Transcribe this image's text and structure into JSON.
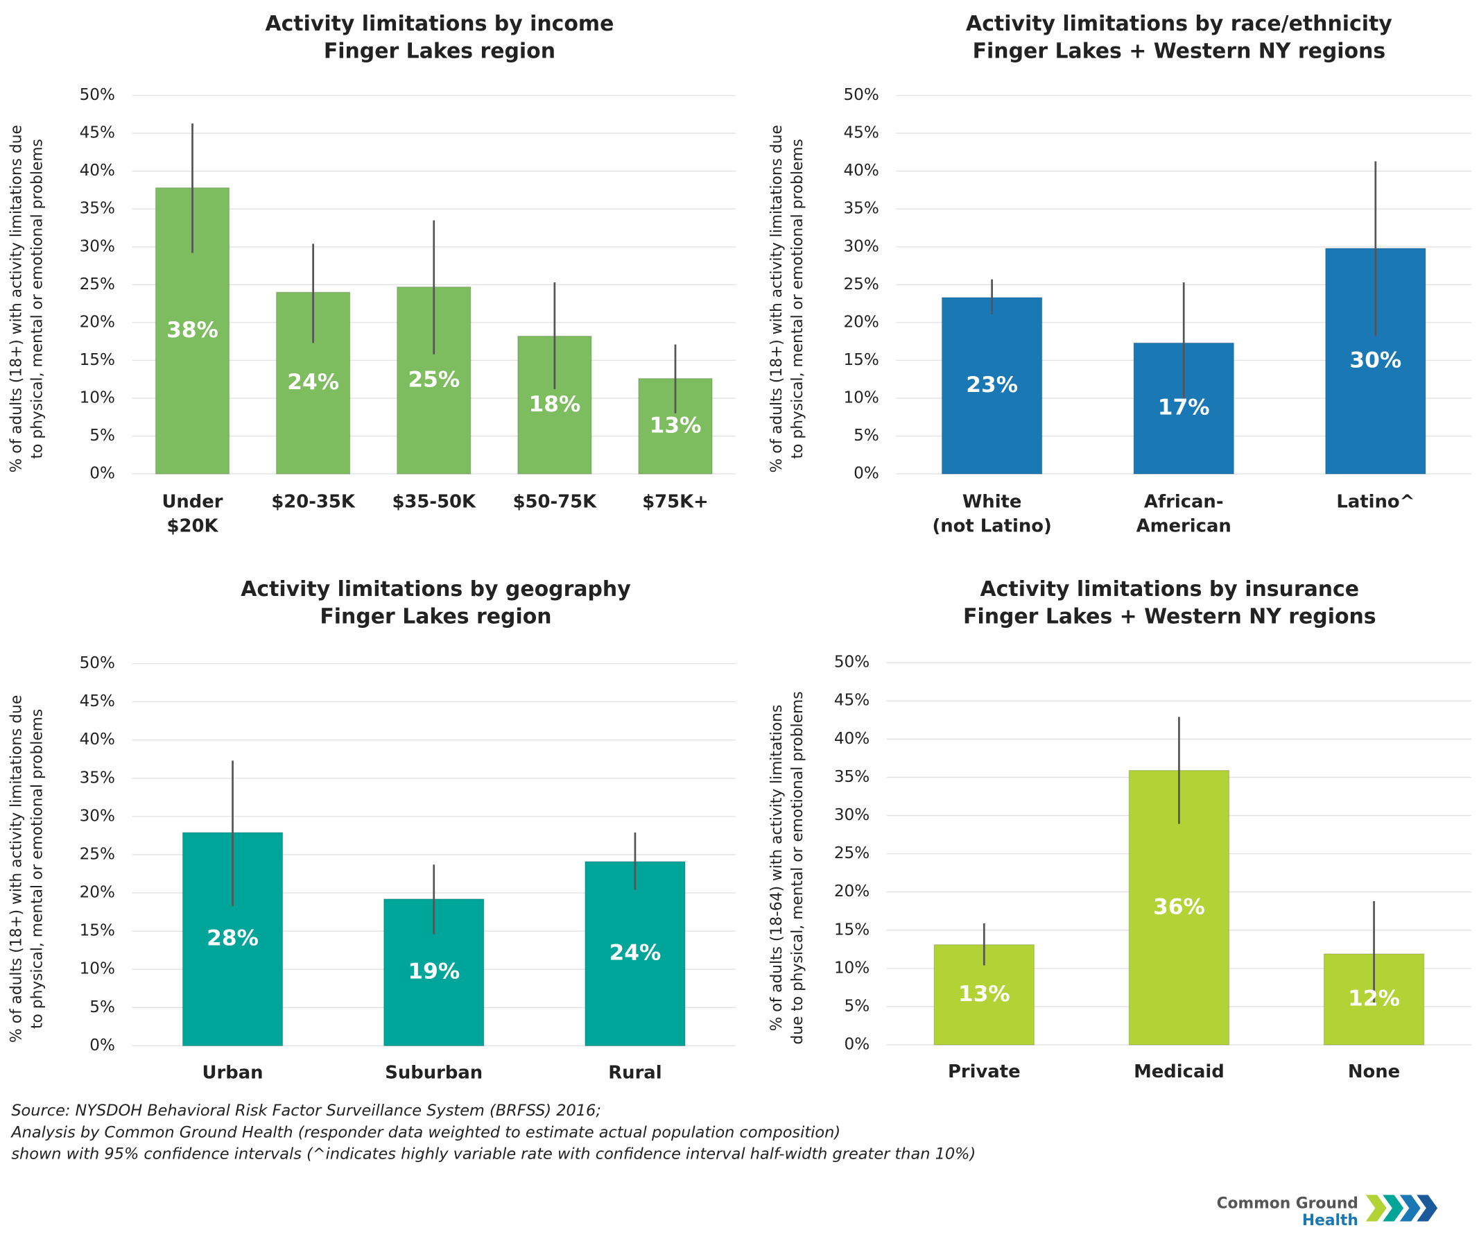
{
  "chart_data": [
    {
      "type": "bar",
      "title": "Activity limitations by income",
      "subtitle": "Finger Lakes region",
      "ylabel": [
        "% of adults (18+) with activity limitations due",
        "to physical, mental or emotional problems"
      ],
      "categories": [
        [
          "Under",
          "$20K"
        ],
        [
          "$20-35K"
        ],
        [
          "$35-50K"
        ],
        [
          "$50-75K"
        ],
        [
          "$75K+"
        ]
      ],
      "values": [
        37.8,
        24,
        24.7,
        18.2,
        12.6
      ],
      "value_labels": [
        "38%",
        "24%",
        "25%",
        "18%",
        "13%"
      ],
      "lower": [
        29.2,
        17.3,
        15.8,
        11.2,
        8
      ],
      "upper": [
        46.3,
        30.4,
        33.5,
        25.3,
        17.1
      ],
      "color": "#7dbd5f",
      "ylim": [
        0,
        50
      ],
      "grid": true,
      "yticks": [
        {
          "value": 0,
          "label": "0%"
        },
        {
          "value": 5,
          "label": "5%"
        },
        {
          "value": 10,
          "label": "10%"
        },
        {
          "value": 15,
          "label": "15%"
        },
        {
          "value": 20,
          "label": "20%"
        },
        {
          "value": 25,
          "label": "25%"
        },
        {
          "value": 30,
          "label": "30%"
        },
        {
          "value": 35,
          "label": "35%"
        },
        {
          "value": 40,
          "label": "40%"
        },
        {
          "value": 45,
          "label": "45%"
        },
        {
          "value": 50,
          "label": "50%"
        }
      ]
    },
    {
      "type": "bar",
      "title": "Activity limitations by race/ethnicity",
      "subtitle": "Finger Lakes + Western NY regions",
      "ylabel": [
        "% of adults (18+) with activity limitations due",
        "to physical, mental or emotional problems"
      ],
      "categories": [
        [
          "White",
          "(not Latino)"
        ],
        [
          "African-",
          "American"
        ],
        [
          "Latino^"
        ]
      ],
      "values": [
        23.3,
        17.3,
        29.8
      ],
      "value_labels": [
        "23%",
        "17%",
        "30%"
      ],
      "lower": [
        21.1,
        9.6,
        18.2
      ],
      "upper": [
        25.7,
        25.3,
        41.3
      ],
      "color": "#1a78b5",
      "ylim": [
        0,
        50
      ],
      "grid": true,
      "yticks": [
        {
          "value": 0,
          "label": "0%"
        },
        {
          "value": 5,
          "label": "5%"
        },
        {
          "value": 10,
          "label": "10%"
        },
        {
          "value": 15,
          "label": "15%"
        },
        {
          "value": 20,
          "label": "20%"
        },
        {
          "value": 25,
          "label": "25%"
        },
        {
          "value": 30,
          "label": "30%"
        },
        {
          "value": 35,
          "label": "35%"
        },
        {
          "value": 40,
          "label": "40%"
        },
        {
          "value": 45,
          "label": "45%"
        },
        {
          "value": 50,
          "label": "50%"
        }
      ]
    },
    {
      "type": "bar",
      "title": "Activity limitations by geography",
      "subtitle": "Finger Lakes region",
      "ylabel": [
        "% of adults (18+) with activity limitations due",
        "to physical, mental or emotional problems"
      ],
      "categories": [
        [
          "Urban"
        ],
        [
          "Suburban"
        ],
        [
          "Rural"
        ]
      ],
      "values": [
        27.9,
        19.2,
        24.1
      ],
      "value_labels": [
        "28%",
        "19%",
        "24%"
      ],
      "lower": [
        18.3,
        14.6,
        20.4
      ],
      "upper": [
        37.3,
        23.7,
        27.9
      ],
      "color": "#00a59a",
      "ylim": [
        0,
        50
      ],
      "grid": true,
      "yticks": [
        {
          "value": 0,
          "label": "0%"
        },
        {
          "value": 5,
          "label": "5%"
        },
        {
          "value": 10,
          "label": "10%"
        },
        {
          "value": 15,
          "label": "15%"
        },
        {
          "value": 20,
          "label": "20%"
        },
        {
          "value": 25,
          "label": "25%"
        },
        {
          "value": 30,
          "label": "30%"
        },
        {
          "value": 35,
          "label": "35%"
        },
        {
          "value": 40,
          "label": "40%"
        },
        {
          "value": 45,
          "label": "45%"
        },
        {
          "value": 50,
          "label": "50%"
        }
      ]
    },
    {
      "type": "bar",
      "title": "Activity limitations by insurance",
      "subtitle": "Finger Lakes + Western NY regions",
      "ylabel": [
        "% of adults (18-64) with activity limitations",
        "due to physical, mental or emotional problems"
      ],
      "categories": [
        [
          "Private"
        ],
        [
          "Medicaid"
        ],
        [
          "None"
        ]
      ],
      "values": [
        13.1,
        35.9,
        11.9
      ],
      "value_labels": [
        "13%",
        "36%",
        "12%"
      ],
      "lower": [
        10.4,
        28.9,
        5.5
      ],
      "upper": [
        15.9,
        42.9,
        18.8
      ],
      "color": "#b2d235",
      "ylim": [
        0,
        50
      ],
      "grid": true,
      "yticks": [
        {
          "value": 0,
          "label": "0%"
        },
        {
          "value": 5,
          "label": "5%"
        },
        {
          "value": 10,
          "label": "10%"
        },
        {
          "value": 15,
          "label": "15%"
        },
        {
          "value": 20,
          "label": "20%"
        },
        {
          "value": 25,
          "label": "25%"
        },
        {
          "value": 30,
          "label": "30%"
        },
        {
          "value": 35,
          "label": "35%"
        },
        {
          "value": 40,
          "label": "40%"
        },
        {
          "value": 45,
          "label": "45%"
        },
        {
          "value": 50,
          "label": "50%"
        }
      ]
    }
  ],
  "source": [
    "Source: NYSDOH Behavioral Risk Factor Surveillance System (BRFSS) 2016;",
    "Analysis by Common Ground Health (responder data weighted to estimate actual population composition)",
    "shown with 95% confidence intervals (^indicates highly variable rate with confidence interval half-width greater than 10%)"
  ],
  "logo": [
    "Common Ground",
    "Health"
  ]
}
